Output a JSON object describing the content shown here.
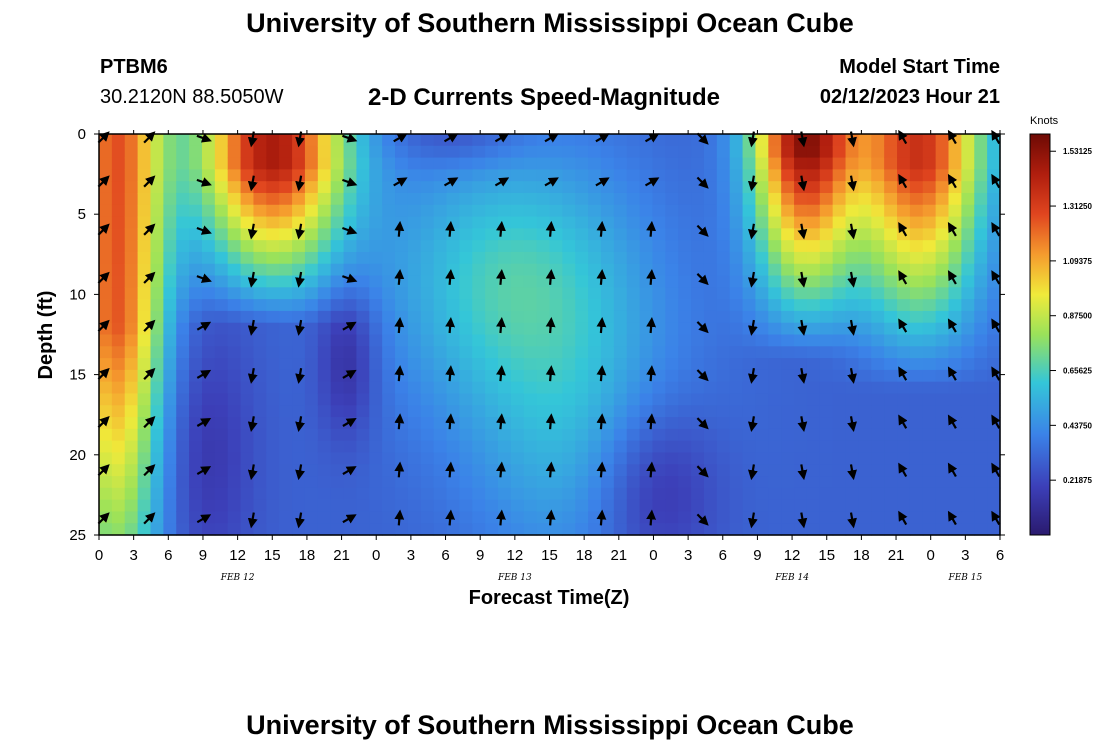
{
  "header": {
    "title": "University of Southern Mississippi Ocean Cube",
    "station": "PTBM6",
    "coords": "30.2120N  88.5050W",
    "subtitle": "2-D Currents Speed-Magnitude",
    "model_label": "Model Start Time",
    "model_time": "02/12/2023 Hour 21"
  },
  "footer": {
    "title": "University of Southern Mississippi Ocean Cube"
  },
  "chart_data": {
    "type": "heatmap",
    "title": "2-D Currents Speed-Magnitude",
    "xlabel": "Forecast Time(Z)",
    "ylabel": "Depth (ft)",
    "x_tick_labels": [
      "0",
      "3",
      "6",
      "9",
      "12",
      "15",
      "18",
      "21",
      "0",
      "3",
      "6",
      "9",
      "12",
      "15",
      "18",
      "21",
      "0",
      "3",
      "6",
      "9",
      "12",
      "15",
      "18",
      "21",
      "0",
      "3",
      "6"
    ],
    "x_range_hours": [
      0,
      78
    ],
    "date_labels": [
      {
        "label": "FEB 12",
        "hour": 12
      },
      {
        "label": "FEB 13",
        "hour": 36
      },
      {
        "label": "FEB 14",
        "hour": 60
      },
      {
        "label": "FEB 15",
        "hour": 75
      }
    ],
    "y_tick_labels": [
      "0",
      "5",
      "10",
      "15",
      "20",
      "25"
    ],
    "ylim": [
      0,
      25
    ],
    "y_inverted": true,
    "colorbar": {
      "label": "Knots",
      "range": [
        0,
        1.6
      ],
      "ticks": [
        "1.53125",
        "1.31250",
        "1.09375",
        "0.87500",
        "0.65625",
        "0.43750",
        "0.21875"
      ]
    },
    "arrow_times_hours": [
      0,
      4.3,
      9,
      13.3,
      17.4,
      21.6,
      26,
      30.4,
      34.8,
      39.1,
      43.5,
      47.8,
      52.2,
      56.6,
      60.9,
      65.2,
      69.6,
      73.9,
      78
    ],
    "arrow_depths_ft": [
      0,
      3,
      6,
      9,
      12,
      15,
      18,
      21,
      24
    ]
  }
}
